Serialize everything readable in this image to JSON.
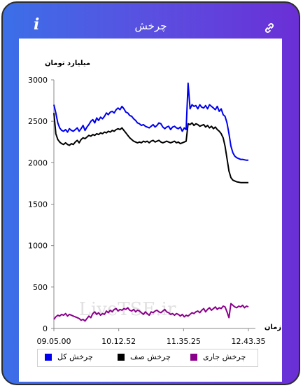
{
  "header": {
    "title": "چرخش",
    "info_icon": "i"
  },
  "icons": {
    "info": "info-icon",
    "link": "link-icon"
  },
  "colors": {
    "total": "#0000ee",
    "zero": "#000000",
    "current": "#8b008b",
    "header_start": "#3b6fe8",
    "header_end": "#6a2fd6"
  },
  "watermark": "LiveTSE.ir",
  "chart_data": {
    "type": "line",
    "ylabel": "میلیارد تومان",
    "xlabel": "زمان",
    "ylim": [
      0,
      3000
    ],
    "yticks": [
      0,
      500,
      1000,
      1500,
      2000,
      2500,
      3000
    ],
    "xticks": [
      "09.05.00",
      "10.12.52",
      "11.35.25",
      "12.43.35"
    ],
    "grid": false,
    "legend_position": "bottom",
    "series": [
      {
        "name": "چرخش کل",
        "color": "#0000ee",
        "x": [
          0,
          1,
          2,
          3,
          4,
          5,
          6,
          7,
          8,
          9,
          10,
          11,
          12,
          13,
          14,
          15,
          16,
          17,
          18,
          19,
          20,
          21,
          22,
          23,
          24,
          25,
          26,
          27,
          28,
          29,
          30,
          31,
          32,
          33,
          34,
          35,
          36,
          37,
          38,
          39,
          40,
          41,
          42,
          43,
          44,
          45,
          46,
          47,
          48,
          49,
          50,
          51,
          52,
          53,
          54,
          55,
          56,
          57,
          58,
          59,
          60,
          61,
          62,
          63,
          64,
          65,
          66,
          67,
          68,
          69,
          70,
          71,
          72,
          73,
          74,
          75,
          76,
          77,
          78,
          79,
          80,
          81,
          82,
          83,
          84,
          85,
          86,
          87,
          88,
          89,
          90,
          91,
          92,
          93,
          94,
          95,
          96,
          97,
          98,
          99,
          100
        ],
        "y": [
          2700,
          2600,
          2480,
          2420,
          2390,
          2380,
          2400,
          2370,
          2410,
          2390,
          2380,
          2400,
          2420,
          2380,
          2410,
          2450,
          2390,
          2430,
          2460,
          2500,
          2520,
          2480,
          2540,
          2510,
          2550,
          2530,
          2560,
          2600,
          2580,
          2610,
          2620,
          2600,
          2640,
          2660,
          2640,
          2680,
          2650,
          2610,
          2600,
          2570,
          2560,
          2530,
          2510,
          2480,
          2470,
          2450,
          2460,
          2440,
          2430,
          2420,
          2440,
          2460,
          2430,
          2450,
          2480,
          2470,
          2430,
          2410,
          2430,
          2440,
          2400,
          2430,
          2440,
          2420,
          2410,
          2430,
          2380,
          2420,
          2400,
          2960,
          2650,
          2700,
          2680,
          2690,
          2650,
          2700,
          2670,
          2660,
          2690,
          2650,
          2700,
          2680,
          2660,
          2640,
          2680,
          2620,
          2650,
          2580,
          2560,
          2480,
          2350,
          2200,
          2120,
          2080,
          2060,
          2050,
          2040,
          2040,
          2035,
          2030,
          2030
        ]
      },
      {
        "name": "چرخش صف",
        "color": "#000000",
        "x": [
          0,
          1,
          2,
          3,
          4,
          5,
          6,
          7,
          8,
          9,
          10,
          11,
          12,
          13,
          14,
          15,
          16,
          17,
          18,
          19,
          20,
          21,
          22,
          23,
          24,
          25,
          26,
          27,
          28,
          29,
          30,
          31,
          32,
          33,
          34,
          35,
          36,
          37,
          38,
          39,
          40,
          41,
          42,
          43,
          44,
          45,
          46,
          47,
          48,
          49,
          50,
          51,
          52,
          53,
          54,
          55,
          56,
          57,
          58,
          59,
          60,
          61,
          62,
          63,
          64,
          65,
          66,
          67,
          68,
          69,
          70,
          71,
          72,
          73,
          74,
          75,
          76,
          77,
          78,
          79,
          80,
          81,
          82,
          83,
          84,
          85,
          86,
          87,
          88,
          89,
          90,
          91,
          92,
          93,
          94,
          95,
          96,
          97,
          98,
          99,
          100
        ],
        "y": [
          2600,
          2350,
          2280,
          2250,
          2230,
          2220,
          2240,
          2220,
          2210,
          2230,
          2220,
          2250,
          2270,
          2240,
          2280,
          2300,
          2290,
          2310,
          2330,
          2320,
          2340,
          2330,
          2350,
          2340,
          2360,
          2350,
          2370,
          2360,
          2380,
          2370,
          2390,
          2380,
          2400,
          2410,
          2400,
          2420,
          2390,
          2360,
          2330,
          2300,
          2280,
          2260,
          2250,
          2240,
          2250,
          2240,
          2260,
          2250,
          2260,
          2240,
          2260,
          2270,
          2250,
          2260,
          2270,
          2250,
          2240,
          2250,
          2260,
          2250,
          2240,
          2250,
          2260,
          2240,
          2250,
          2230,
          2240,
          2250,
          2260,
          2470,
          2460,
          2480,
          2450,
          2470,
          2460,
          2440,
          2450,
          2460,
          2430,
          2450,
          2420,
          2440,
          2410,
          2430,
          2400,
          2380,
          2350,
          2300,
          2200,
          2050,
          1900,
          1820,
          1790,
          1780,
          1770,
          1765,
          1760,
          1760,
          1760,
          1760,
          1760
        ]
      },
      {
        "name": "چرخش جاری",
        "color": "#8b008b",
        "x": [
          0,
          1,
          2,
          3,
          4,
          5,
          6,
          7,
          8,
          9,
          10,
          11,
          12,
          13,
          14,
          15,
          16,
          17,
          18,
          19,
          20,
          21,
          22,
          23,
          24,
          25,
          26,
          27,
          28,
          29,
          30,
          31,
          32,
          33,
          34,
          35,
          36,
          37,
          38,
          39,
          40,
          41,
          42,
          43,
          44,
          45,
          46,
          47,
          48,
          49,
          50,
          51,
          52,
          53,
          54,
          55,
          56,
          57,
          58,
          59,
          60,
          61,
          62,
          63,
          64,
          65,
          66,
          67,
          68,
          69,
          70,
          71,
          72,
          73,
          74,
          75,
          76,
          77,
          78,
          79,
          80,
          81,
          82,
          83,
          84,
          85,
          86,
          87,
          88,
          89,
          90,
          91,
          92,
          93,
          94,
          95,
          96,
          97,
          98,
          99,
          100
        ],
        "y": [
          110,
          140,
          160,
          150,
          170,
          160,
          180,
          150,
          170,
          160,
          150,
          140,
          130,
          120,
          100,
          110,
          90,
          120,
          150,
          130,
          180,
          200,
          170,
          190,
          160,
          180,
          170,
          210,
          190,
          220,
          200,
          230,
          240,
          210,
          230,
          220,
          240,
          230,
          250,
          220,
          210,
          230,
          200,
          220,
          210,
          190,
          170,
          200,
          180,
          160,
          200,
          190,
          210,
          220,
          200,
          190,
          210,
          230,
          200,
          190,
          170,
          180,
          160,
          180,
          170,
          150,
          170,
          140,
          160,
          150,
          170,
          190,
          180,
          200,
          210,
          190,
          220,
          240,
          200,
          230,
          250,
          220,
          240,
          260,
          230,
          250,
          240,
          270,
          260,
          200,
          130,
          300,
          280,
          260,
          250,
          270,
          260,
          280,
          250,
          270,
          260
        ]
      }
    ]
  }
}
